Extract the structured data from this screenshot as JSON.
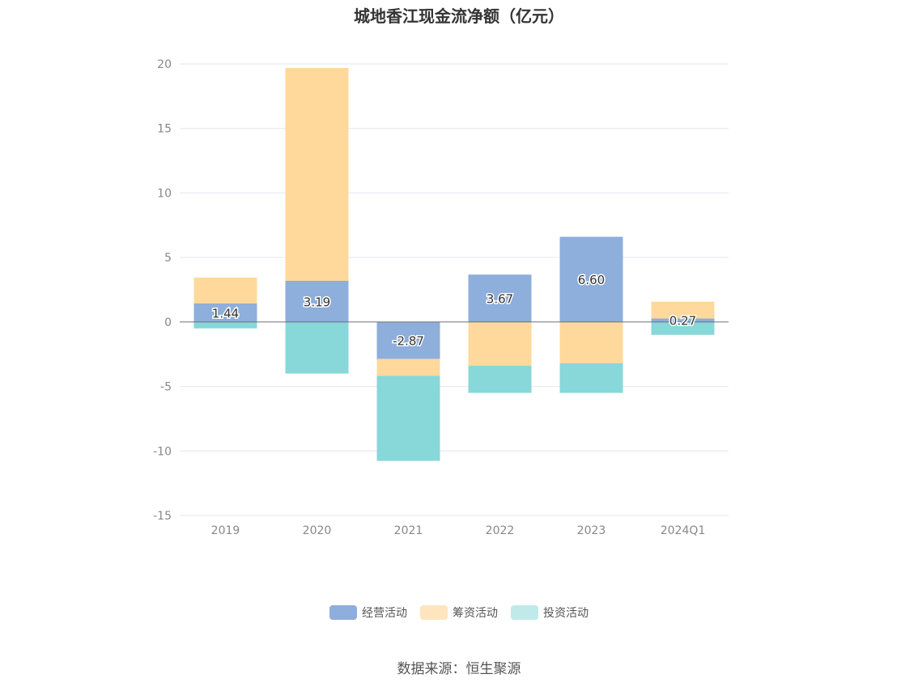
{
  "chart_data": {
    "type": "bar",
    "stacked": true,
    "title": "城地香江现金流净额（亿元）",
    "categories": [
      "2019",
      "2020",
      "2021",
      "2022",
      "2023",
      "2024Q1"
    ],
    "ylim": [
      -15,
      20
    ],
    "yticks": [
      20,
      15,
      10,
      5,
      0,
      -5,
      -10,
      -15
    ],
    "grid": true,
    "legend_position": "bottom",
    "series": [
      {
        "name": "经营活动",
        "color": "#8eaedb",
        "values": [
          1.44,
          3.19,
          -2.87,
          3.67,
          6.6,
          0.27
        ],
        "labels": [
          "1.44",
          "3.19",
          "-2.87",
          "3.67",
          "6.60",
          "0.27"
        ]
      },
      {
        "name": "筹资活动",
        "color": "#ffd99c",
        "values": [
          2.0,
          16.5,
          -1.3,
          -3.4,
          -3.2,
          1.3
        ]
      },
      {
        "name": "投资活动",
        "color": "#88d7d9",
        "values": [
          -0.5,
          -4.0,
          -6.6,
          -2.1,
          -2.3,
          -1.0
        ]
      }
    ],
    "legend_colors": [
      "#8eaedb",
      "#ffe5bd",
      "#c0e9ea"
    ],
    "source": "数据来源：恒生聚源"
  }
}
